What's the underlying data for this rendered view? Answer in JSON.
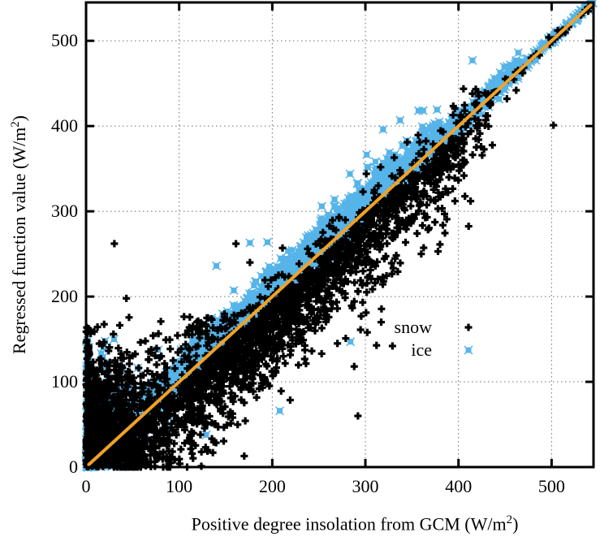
{
  "chart_data": {
    "type": "scatter",
    "title": "",
    "xlabel": {
      "prefix": "Positive degree insolation from GCM (W/m",
      "sup": "2",
      "suffix": ")"
    },
    "ylabel": {
      "prefix": "Regressed function value (W/m",
      "sup": "2",
      "suffix": ")"
    },
    "xlim": [
      0,
      545
    ],
    "ylim": [
      0,
      545
    ],
    "xticks": [
      0,
      100,
      200,
      300,
      400,
      500
    ],
    "yticks": [
      0,
      100,
      200,
      300,
      400,
      500
    ],
    "grid": "dotted",
    "grid_color": "#6e6e6e",
    "frame_color": "#000000",
    "identity_line": {
      "from": [
        0,
        0
      ],
      "to": [
        545,
        545
      ],
      "color": "#efa229",
      "width": 4
    },
    "legend": {
      "position": "middle-right",
      "items": [
        "snow",
        "ice"
      ]
    },
    "seed": 7,
    "series": [
      {
        "name": "ice",
        "color": "#56b4e9",
        "marker": "square-with-x",
        "clusters": [
          {
            "n": 1500,
            "x": [
              "uniform",
              0,
              180
            ],
            "dy": [
              "normal",
              8,
              9
            ]
          },
          {
            "n": 1250,
            "x": [
              "uniform",
              180,
              380
            ],
            "dy": [
              "normal",
              10,
              11
            ]
          },
          {
            "n": 400,
            "x": [
              "uniform",
              380,
              465
            ],
            "dy": [
              "normal",
              4,
              6
            ]
          },
          {
            "n": 130,
            "x": [
              "uniform",
              465,
              545
            ],
            "dy": [
              "normal",
              1,
              2.5
            ]
          },
          {
            "n": 520,
            "x": [
              "halfnormal",
              28
            ],
            "y": [
              "halfnormal",
              44
            ]
          },
          {
            "n": 60,
            "x": [
              "uniform",
              0,
              3
            ],
            "y": [
              "uniform",
              0,
              150
            ]
          },
          {
            "n": 26,
            "x": [
              "uniform",
              40,
              380
            ],
            "dy": [
              "uniform",
              26,
              70
            ]
          }
        ],
        "outliers": [
          [
            140,
            236
          ],
          [
            176,
            263
          ],
          [
            319,
            396
          ],
          [
            415,
            477
          ],
          [
            284,
            147
          ],
          [
            208,
            66
          ],
          [
            302,
            352
          ],
          [
            357,
            418
          ],
          [
            30,
            150
          ],
          [
            452,
            470
          ]
        ]
      },
      {
        "name": "snow",
        "color": "#000000",
        "marker": "filled-plus",
        "clusters": [
          {
            "n": 950,
            "x": [
              "halfnormal",
              38
            ],
            "y": [
              "halfnormal",
              57
            ]
          },
          {
            "n": 80,
            "x": [
              "uniform",
              0,
              4
            ],
            "y": [
              "uniform",
              0,
              165
            ]
          },
          {
            "n": 1450,
            "x": [
              "triangular",
              25,
              185,
              435
            ],
            "dy": [
              "negabs",
              8,
              42
            ]
          },
          {
            "n": 470,
            "x": [
              "uniform",
              40,
              435
            ],
            "dy": [
              "normal",
              -8,
              16
            ]
          },
          {
            "n": 130,
            "x": [
              "uniform",
              5,
              150
            ],
            "dy": [
              "posabs",
              12,
              38
            ],
            "ymax": 178
          },
          {
            "n": 32,
            "x": [
              "uniform",
              430,
              545
            ],
            "dy": [
              "normal",
              0,
              3.5
            ]
          },
          {
            "n": 70,
            "x": [
              "uniform",
              290,
              440
            ],
            "dy": [
              "negabs",
              18,
              45
            ]
          }
        ],
        "outliers": [
          [
            502,
            401
          ],
          [
            397,
            373
          ],
          [
            396,
            339
          ],
          [
            413,
            312
          ],
          [
            452,
            432
          ],
          [
            462,
            442
          ],
          [
            497,
            504
          ],
          [
            536,
            536
          ],
          [
            415,
            438
          ],
          [
            378,
            253
          ],
          [
            331,
            363
          ],
          [
            345,
            381
          ],
          [
            301,
            344
          ],
          [
            161,
            262
          ],
          [
            176,
            240
          ],
          [
            211,
            257
          ],
          [
            238,
            256
          ],
          [
            288,
            118
          ],
          [
            292,
            60
          ],
          [
            253,
            133
          ],
          [
            270,
            145
          ],
          [
            302,
            158
          ],
          [
            317,
            170
          ],
          [
            360,
            250
          ]
        ]
      }
    ]
  }
}
